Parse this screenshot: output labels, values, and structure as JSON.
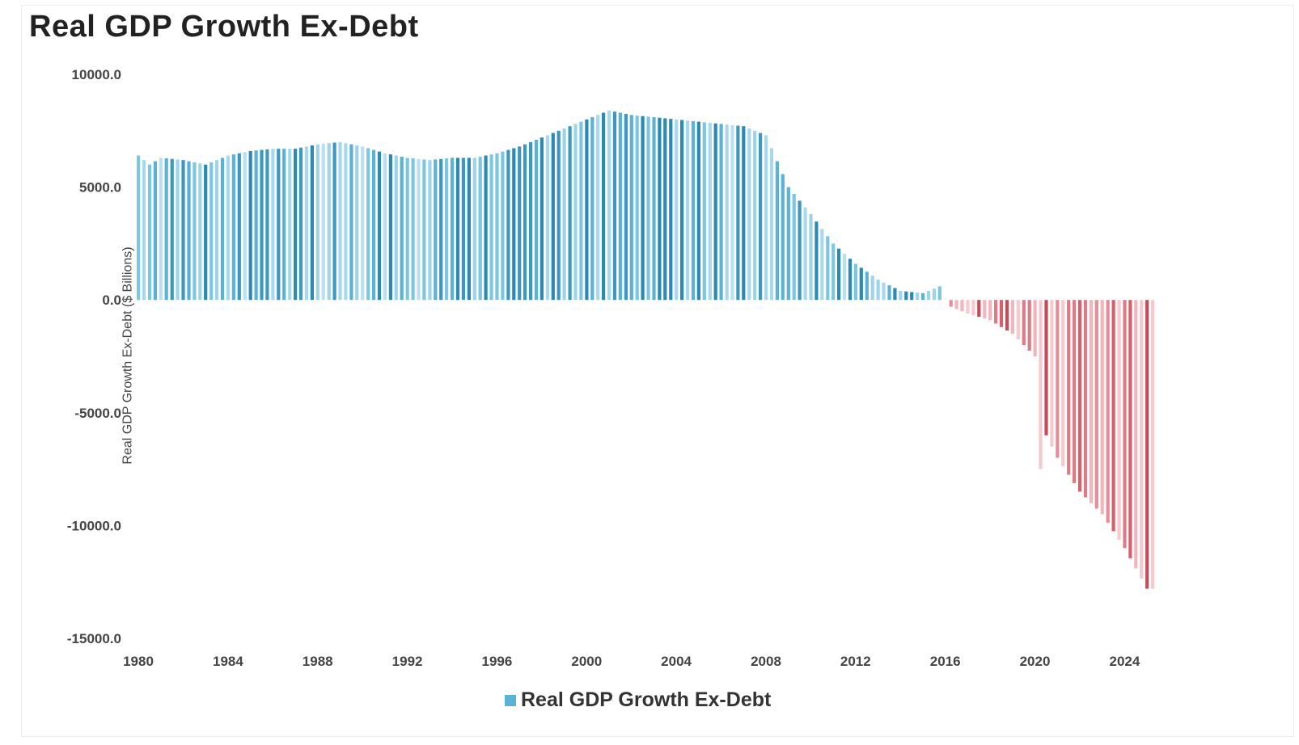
{
  "chart_data": {
    "type": "bar",
    "title": "Real GDP Growth Ex-Debt",
    "ylabel": "Real GDP Growth Ex-Debt ($ Billions)",
    "xlabel": "",
    "ylim": [
      -15000,
      10000
    ],
    "yticks": [
      "10000.0",
      "5000.0",
      "0.0",
      "-5000.0",
      "-10000.0",
      "-15000.0"
    ],
    "ytick_values": [
      10000,
      5000,
      0,
      -5000,
      -10000,
      -15000
    ],
    "xticks": [
      "1980",
      "1984",
      "1988",
      "1992",
      "1996",
      "2000",
      "2004",
      "2008",
      "2012",
      "2016",
      "2020",
      "2024"
    ],
    "x_start": 1980.0,
    "x_end": 2025.25,
    "x_step": 0.25,
    "legend": "Real GDP Growth Ex-Debt",
    "legend_position": "bottom-center",
    "grid": false,
    "colors": {
      "positive": "#5ab2d6",
      "negative": "#e0707a"
    },
    "keyframes": [
      [
        1980.0,
        6400
      ],
      [
        1980.5,
        6000
      ],
      [
        1981.0,
        6300
      ],
      [
        1982.0,
        6200
      ],
      [
        1983.0,
        6000
      ],
      [
        1984.0,
        6400
      ],
      [
        1985.0,
        6600
      ],
      [
        1986.0,
        6700
      ],
      [
        1987.0,
        6700
      ],
      [
        1988.0,
        6900
      ],
      [
        1989.0,
        7000
      ],
      [
        1990.0,
        6800
      ],
      [
        1991.0,
        6500
      ],
      [
        1992.0,
        6300
      ],
      [
        1993.0,
        6200
      ],
      [
        1994.0,
        6300
      ],
      [
        1995.0,
        6300
      ],
      [
        1996.0,
        6500
      ],
      [
        1997.0,
        6800
      ],
      [
        1998.0,
        7200
      ],
      [
        1999.0,
        7600
      ],
      [
        2000.0,
        8000
      ],
      [
        2001.0,
        8400
      ],
      [
        2002.0,
        8200
      ],
      [
        2003.0,
        8100
      ],
      [
        2004.0,
        8000
      ],
      [
        2005.0,
        7900
      ],
      [
        2006.0,
        7800
      ],
      [
        2007.0,
        7700
      ],
      [
        2008.0,
        7300
      ],
      [
        2009.0,
        5000
      ],
      [
        2010.0,
        3800
      ],
      [
        2011.0,
        2500
      ],
      [
        2012.0,
        1600
      ],
      [
        2013.0,
        900
      ],
      [
        2014.0,
        400
      ],
      [
        2015.0,
        300
      ],
      [
        2015.75,
        600
      ],
      [
        2016.0,
        0
      ],
      [
        2016.25,
        -300
      ],
      [
        2017.0,
        -600
      ],
      [
        2018.0,
        -900
      ],
      [
        2019.0,
        -1500
      ],
      [
        2020.0,
        -2500
      ],
      [
        2020.25,
        -7500
      ],
      [
        2020.5,
        -6000
      ],
      [
        2021.0,
        -7000
      ],
      [
        2022.0,
        -8500
      ],
      [
        2023.0,
        -9500
      ],
      [
        2024.0,
        -11000
      ],
      [
        2025.0,
        -12800
      ],
      [
        2025.25,
        -12800
      ]
    ]
  }
}
